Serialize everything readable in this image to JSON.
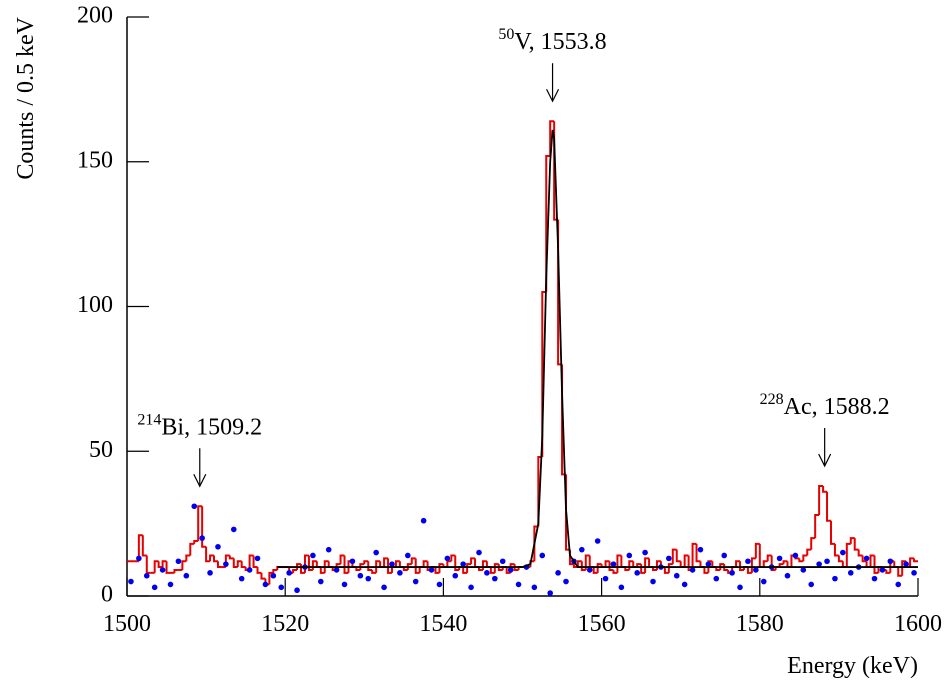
{
  "chart_data": {
    "type": "histogram",
    "xlabel": "Energy (keV)",
    "ylabel": "Counts / 0.5 keV",
    "xlim": [
      1500,
      1600
    ],
    "ylim": [
      0,
      200
    ],
    "xticks": [
      1500,
      1520,
      1540,
      1560,
      1580,
      1600
    ],
    "yticks": [
      0,
      50,
      100,
      150,
      200
    ],
    "color": "#e60000",
    "bins": [
      1500,
      1500.5,
      1501,
      1501.5,
      1502,
      1502.5,
      1503,
      1503.5,
      1504,
      1504.5,
      1505,
      1505.5,
      1506,
      1506.5,
      1507,
      1507.5,
      1508,
      1508.5,
      1509,
      1509.5,
      1510,
      1510.5,
      1511,
      1511.5,
      1512,
      1512.5,
      1513,
      1513.5,
      1514,
      1514.5,
      1515,
      1515.5,
      1516,
      1516.5,
      1517,
      1517.5,
      1518,
      1518.5,
      1519,
      1519.5,
      1520,
      1520.5,
      1521,
      1521.5,
      1522,
      1522.5,
      1523,
      1523.5,
      1524,
      1524.5,
      1525,
      1525.5,
      1526,
      1526.5,
      1527,
      1527.5,
      1528,
      1528.5,
      1529,
      1529.5,
      1530,
      1530.5,
      1531,
      1531.5,
      1532,
      1532.5,
      1533,
      1533.5,
      1534,
      1534.5,
      1535,
      1535.5,
      1536,
      1536.5,
      1537,
      1537.5,
      1538,
      1538.5,
      1539,
      1539.5,
      1540,
      1540.5,
      1541,
      1541.5,
      1542,
      1542.5,
      1543,
      1543.5,
      1544,
      1544.5,
      1545,
      1545.5,
      1546,
      1546.5,
      1547,
      1547.5,
      1548,
      1548.5,
      1549,
      1549.5,
      1550,
      1550.5,
      1551,
      1551.5,
      1552,
      1552.5,
      1553,
      1553.5,
      1554,
      1554.5,
      1555,
      1555.5,
      1556,
      1556.5,
      1557,
      1557.5,
      1558,
      1558.5,
      1559,
      1559.5,
      1560,
      1560.5,
      1561,
      1561.5,
      1562,
      1562.5,
      1563,
      1563.5,
      1564,
      1564.5,
      1565,
      1565.5,
      1566,
      1566.5,
      1567,
      1567.5,
      1568,
      1568.5,
      1569,
      1569.5,
      1570,
      1570.5,
      1571,
      1571.5,
      1572,
      1572.5,
      1573,
      1573.5,
      1574,
      1574.5,
      1575,
      1575.5,
      1576,
      1576.5,
      1577,
      1577.5,
      1578,
      1578.5,
      1579,
      1579.5,
      1580,
      1580.5,
      1581,
      1581.5,
      1582,
      1582.5,
      1583,
      1583.5,
      1584,
      1584.5,
      1585,
      1585.5,
      1586,
      1586.5,
      1587,
      1587.5,
      1588,
      1588.5,
      1589,
      1589.5,
      1590,
      1590.5,
      1591,
      1591.5,
      1592,
      1592.5,
      1593,
      1593.5,
      1594,
      1594.5,
      1595,
      1595.5,
      1596,
      1596.5,
      1597,
      1597.5,
      1598,
      1598.5,
      1599,
      1599.5,
      1600
    ],
    "values": [
      12,
      12,
      12,
      21,
      14,
      8,
      8,
      12,
      10,
      12,
      8,
      8,
      9,
      9,
      12,
      14,
      18,
      19,
      31,
      17,
      12,
      14,
      12,
      10,
      10,
      14,
      13,
      10,
      12,
      10,
      9,
      14,
      10,
      8,
      6,
      4,
      8,
      9,
      10,
      10,
      10,
      8,
      9,
      11,
      8,
      14,
      9,
      12,
      10,
      8,
      12,
      10,
      9,
      11,
      14,
      8,
      12,
      10,
      9,
      11,
      12,
      9,
      8,
      12,
      10,
      13,
      8,
      10,
      12,
      10,
      9,
      11,
      13,
      8,
      10,
      12,
      9,
      10,
      8,
      11,
      10,
      12,
      14,
      9,
      10,
      8,
      11,
      13,
      10,
      9,
      12,
      10,
      8,
      11,
      9,
      10,
      8,
      11,
      9,
      10,
      10,
      10,
      12,
      24,
      48,
      105,
      152,
      164,
      130,
      80,
      42,
      16,
      11,
      10,
      12,
      9,
      14,
      10,
      8,
      11,
      10,
      12,
      9,
      8,
      14,
      10,
      9,
      12,
      10,
      11,
      8,
      13,
      10,
      9,
      12,
      10,
      8,
      11,
      16,
      12,
      10,
      14,
      9,
      18,
      12,
      10,
      8,
      12,
      10,
      9,
      11,
      9,
      8,
      10,
      12,
      9,
      10,
      8,
      13,
      18,
      10,
      12,
      14,
      9,
      10,
      11,
      12,
      10,
      14,
      13,
      12,
      14,
      16,
      20,
      28,
      38,
      36,
      26,
      18,
      14,
      12,
      10,
      18,
      20,
      16,
      14,
      12,
      10,
      14,
      8,
      10,
      9,
      8,
      12,
      10,
      7,
      12,
      10,
      13,
      12
    ],
    "points": {
      "color": "#0000ee",
      "x": [
        1500.5,
        1501.5,
        1502.5,
        1503.5,
        1504.5,
        1505.5,
        1506.5,
        1507.5,
        1508.5,
        1509.5,
        1510.5,
        1511.5,
        1512.5,
        1513.5,
        1514.5,
        1515.5,
        1516.5,
        1517.5,
        1518.5,
        1519.5,
        1520.5,
        1521.5,
        1522.5,
        1523.5,
        1524.5,
        1525.5,
        1526.5,
        1527.5,
        1528.5,
        1529.5,
        1530.5,
        1531.5,
        1532.5,
        1533.5,
        1534.5,
        1535.5,
        1536.5,
        1537.5,
        1538.5,
        1539.5,
        1540.5,
        1541.5,
        1542.5,
        1543.5,
        1544.5,
        1545.5,
        1546.5,
        1547.5,
        1548.5,
        1549.5,
        1550.5,
        1551.5,
        1552.5,
        1553.5,
        1554.5,
        1555.5,
        1556.5,
        1557.5,
        1558.5,
        1559.5,
        1560.5,
        1561.5,
        1562.5,
        1563.5,
        1564.5,
        1565.5,
        1566.5,
        1567.5,
        1568.5,
        1569.5,
        1570.5,
        1571.5,
        1572.5,
        1573.5,
        1574.5,
        1575.5,
        1576.5,
        1577.5,
        1578.5,
        1579.5,
        1580.5,
        1581.5,
        1582.5,
        1583.5,
        1584.5,
        1585.5,
        1586.5,
        1587.5,
        1588.5,
        1589.5,
        1590.5,
        1591.5,
        1592.5,
        1593.5,
        1594.5,
        1595.5,
        1596.5,
        1597.5,
        1598.5,
        1599.5
      ],
      "values": [
        5,
        13,
        7,
        3,
        9,
        4,
        12,
        7,
        31,
        20,
        8,
        17,
        11,
        23,
        6,
        9,
        13,
        4,
        7,
        3,
        8,
        2,
        10,
        14,
        5,
        16,
        9,
        4,
        12,
        7,
        6,
        15,
        3,
        11,
        8,
        14,
        5,
        26,
        9,
        4,
        13,
        7,
        11,
        3,
        15,
        8,
        6,
        12,
        9,
        4,
        10,
        3,
        14,
        1,
        8,
        5,
        12,
        16,
        9,
        19,
        6,
        11,
        3,
        14,
        8,
        15,
        5,
        10,
        13,
        7,
        4,
        9,
        16,
        11,
        6,
        14,
        8,
        3,
        12,
        9,
        5,
        10,
        13,
        7,
        14,
        9,
        4,
        11,
        12,
        6,
        15,
        8,
        10,
        13,
        6,
        9,
        12,
        4,
        11,
        8
      ]
    },
    "fit": {
      "color": "#000000",
      "x": [
        1519,
        1530,
        1540,
        1550,
        1551,
        1552,
        1552.5,
        1553,
        1553.5,
        1553.8,
        1554,
        1554.5,
        1555,
        1555.5,
        1556,
        1557,
        1560,
        1570,
        1580,
        1590,
        1600
      ],
      "values": [
        10,
        10,
        10,
        10,
        11,
        25,
        55,
        110,
        150,
        161,
        158,
        120,
        70,
        30,
        14,
        10,
        10,
        10,
        10,
        10,
        10
      ]
    },
    "annotations": [
      {
        "sup": "214",
        "text": "Bi, 1509.2",
        "x": 1509.2
      },
      {
        "sup": "50",
        "text": "V, 1553.8",
        "x": 1553.8
      },
      {
        "sup": "228",
        "text": "Ac, 1588.2",
        "x": 1588.2
      }
    ]
  }
}
